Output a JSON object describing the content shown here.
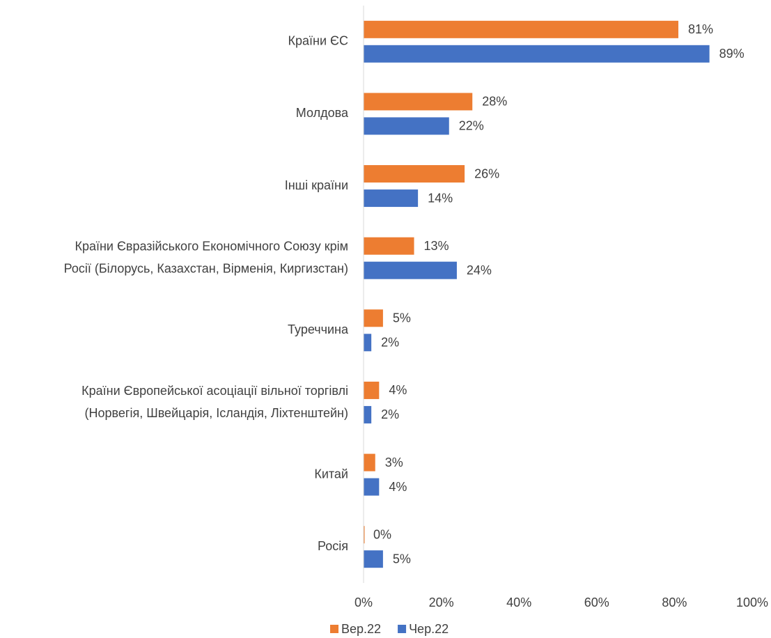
{
  "chart_data": {
    "type": "bar",
    "orientation": "horizontal",
    "categories": [
      "Країни ЄС",
      "Молдова",
      "Інші країни",
      "Країни Євразійського Економічного Союзу крім\nРосії (Білорусь, Казахстан, Вірменія, Киргизстан)",
      "Туреччина",
      "Країни Європейської асоціації вільної торгівлі\n(Норвегія, Швейцарія, Ісландія, Ліхтенштейн)",
      "Китай",
      "Росія"
    ],
    "series": [
      {
        "name": "Вер.22",
        "color": "#ED7D31",
        "values": [
          81,
          28,
          26,
          13,
          5,
          4,
          3,
          0
        ],
        "value_labels": [
          "81%",
          "28%",
          "26%",
          "13%",
          "5%",
          "4%",
          "3%",
          "0%"
        ]
      },
      {
        "name": "Чер.22",
        "color": "#4472C4",
        "values": [
          89,
          22,
          14,
          24,
          2,
          2,
          4,
          5
        ],
        "value_labels": [
          "89%",
          "22%",
          "14%",
          "24%",
          "2%",
          "2%",
          "4%",
          "5%"
        ]
      }
    ],
    "xlim": [
      0,
      100
    ],
    "xticks": [
      {
        "value": 0,
        "label": "0%"
      },
      {
        "value": 20,
        "label": "20%"
      },
      {
        "value": 40,
        "label": "40%"
      },
      {
        "value": 60,
        "label": "60%"
      },
      {
        "value": 80,
        "label": "80%"
      },
      {
        "value": 100,
        "label": "100%"
      }
    ],
    "grid": false,
    "legend": "bottom"
  }
}
